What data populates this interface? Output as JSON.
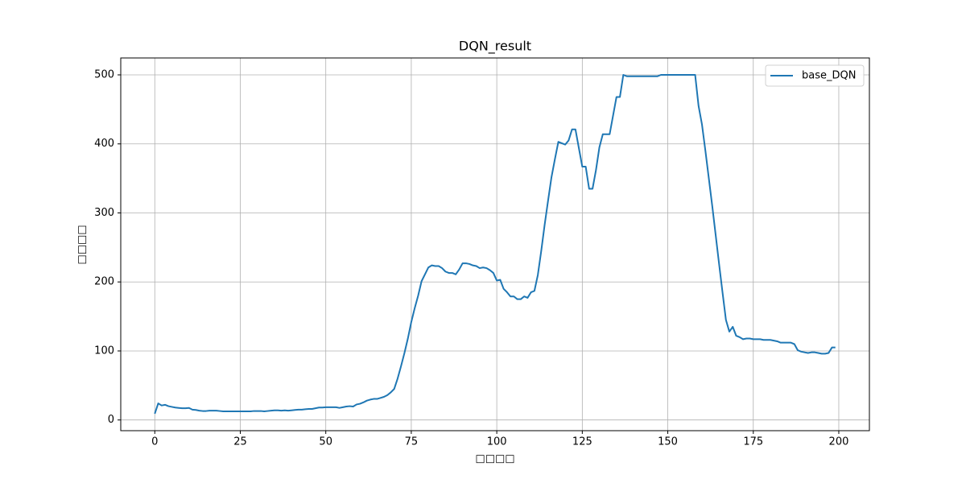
{
  "chart_data": {
    "type": "line",
    "title": "DQN_result",
    "xlabel": "□□□□",
    "ylabel": "□□□□",
    "x": [
      0,
      1,
      2,
      3,
      4,
      5,
      6,
      7,
      8,
      9,
      10,
      11,
      12,
      13,
      14,
      15,
      16,
      17,
      18,
      19,
      20,
      21,
      22,
      23,
      24,
      25,
      26,
      27,
      28,
      29,
      30,
      31,
      32,
      33,
      34,
      35,
      36,
      37,
      38,
      39,
      40,
      41,
      42,
      43,
      44,
      45,
      46,
      47,
      48,
      49,
      50,
      51,
      52,
      53,
      54,
      55,
      56,
      57,
      58,
      59,
      60,
      61,
      62,
      63,
      64,
      65,
      66,
      67,
      68,
      69,
      70,
      71,
      72,
      73,
      74,
      75,
      76,
      77,
      78,
      79,
      80,
      81,
      82,
      83,
      84,
      85,
      86,
      87,
      88,
      89,
      90,
      91,
      92,
      93,
      94,
      95,
      96,
      97,
      98,
      99,
      100,
      101,
      102,
      103,
      104,
      105,
      106,
      107,
      108,
      109,
      110,
      111,
      112,
      113,
      114,
      115,
      116,
      117,
      118,
      119,
      120,
      121,
      122,
      123,
      124,
      125,
      126,
      127,
      128,
      129,
      130,
      131,
      132,
      133,
      134,
      135,
      136,
      137,
      138,
      139,
      140,
      141,
      142,
      143,
      144,
      145,
      146,
      147,
      148,
      149,
      150,
      151,
      152,
      153,
      154,
      155,
      156,
      157,
      158,
      159,
      160,
      161,
      162,
      163,
      164,
      165,
      166,
      167,
      168,
      169,
      170,
      171,
      172,
      173,
      174,
      175,
      176,
      177,
      178,
      179,
      180,
      181,
      182,
      183,
      184,
      185,
      186,
      187,
      188,
      189,
      190,
      191,
      192,
      193,
      194,
      195,
      196,
      197,
      198,
      199
    ],
    "series": [
      {
        "name": "base_DQN",
        "color": "#1f77b4",
        "values": [
          9,
          24,
          21,
          22,
          20,
          19,
          18,
          17.5,
          17,
          17,
          17.5,
          15,
          14.5,
          13.5,
          13,
          13,
          13.5,
          13.5,
          13.5,
          13,
          12.5,
          12.5,
          12.5,
          12.5,
          12.5,
          12.5,
          12.5,
          12.5,
          12.5,
          13,
          13,
          13,
          12.5,
          13,
          13.5,
          14,
          14,
          13.5,
          14,
          13.5,
          14,
          14.5,
          15,
          15,
          15.5,
          16,
          16,
          17,
          18,
          18,
          18.5,
          18.5,
          18.5,
          18.5,
          17.5,
          18.5,
          19.5,
          20,
          19.5,
          22.5,
          23.5,
          25.5,
          28,
          29.5,
          30.5,
          30.5,
          32,
          33.5,
          36,
          40,
          45,
          60,
          78,
          97,
          118,
          142,
          162,
          180,
          201,
          211,
          221,
          224,
          223,
          223,
          220,
          215,
          213,
          213,
          211,
          218,
          227,
          227,
          226,
          224,
          223,
          220,
          221,
          220,
          217,
          213,
          202,
          203,
          190,
          185,
          179,
          179,
          175,
          175,
          179,
          177,
          185,
          187,
          210,
          245,
          283,
          318,
          352,
          378,
          403,
          401,
          399,
          405,
          421,
          421,
          394,
          367,
          367,
          335,
          335,
          362,
          395,
          414,
          414,
          414,
          441,
          468,
          468,
          500,
          498,
          498,
          498,
          498,
          498,
          498,
          498,
          498,
          498,
          498,
          500,
          500,
          500,
          500,
          500,
          500,
          500,
          500,
          500,
          500,
          500,
          455,
          428,
          390,
          350,
          310,
          268,
          226,
          185,
          145,
          128,
          135,
          122,
          120,
          117,
          118,
          118,
          117,
          117,
          117,
          116,
          116,
          116,
          115,
          114,
          112,
          112,
          112,
          112,
          110,
          101,
          99,
          98,
          97,
          98,
          98,
          97,
          96,
          96,
          97,
          105,
          105
        ]
      }
    ],
    "xlim": [
      -9.95,
      208.95
    ],
    "ylim": [
      -15.5,
      524.5
    ],
    "xticks": [
      0,
      25,
      50,
      75,
      100,
      125,
      150,
      175,
      200
    ],
    "yticks": [
      0,
      100,
      200,
      300,
      400,
      500
    ],
    "grid": true,
    "legend": "upper right"
  }
}
